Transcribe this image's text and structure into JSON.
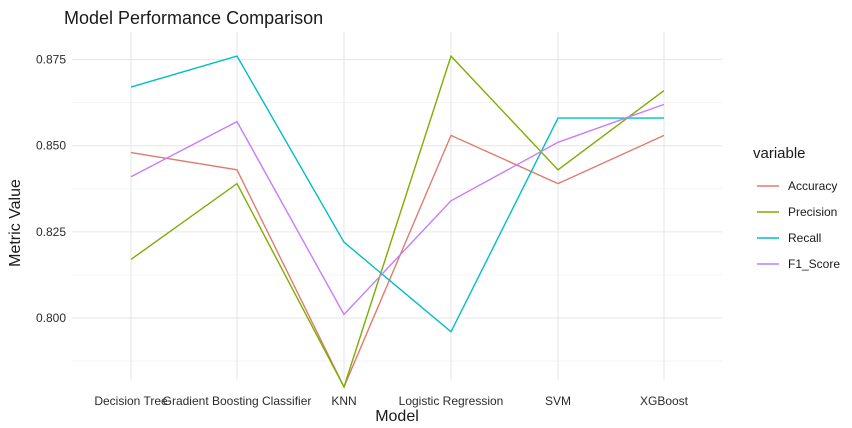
{
  "chart_data": {
    "type": "line",
    "title": "Model Performance Comparison",
    "xlabel": "Model",
    "ylabel": "Metric Value",
    "categories": [
      "Decision Tree",
      "Gradient Boosting Classifier",
      "KNN",
      "Logistic Regression",
      "SVM",
      "XGBoost"
    ],
    "ylim": [
      0.782,
      0.883
    ],
    "yticks": [
      0.8,
      0.825,
      0.85,
      0.875
    ],
    "ytick_labels": [
      "0.800",
      "0.825",
      "0.850",
      "0.875"
    ],
    "grid": true,
    "legend": {
      "title": "variable",
      "position": "right"
    },
    "series": [
      {
        "name": "Accuracy",
        "color": "#e07b6f",
        "values": [
          0.848,
          0.843,
          0.78,
          0.853,
          0.839,
          0.853
        ]
      },
      {
        "name": "Precision",
        "color": "#7cae00",
        "values": [
          0.817,
          0.839,
          0.78,
          0.876,
          0.843,
          0.866
        ]
      },
      {
        "name": "Recall",
        "color": "#00bfc4",
        "values": [
          0.867,
          0.876,
          0.822,
          0.796,
          0.858,
          0.858
        ]
      },
      {
        "name": "F1_Score",
        "color": "#c77cff",
        "values": [
          0.841,
          0.857,
          0.801,
          0.834,
          0.851,
          0.862
        ]
      }
    ]
  }
}
